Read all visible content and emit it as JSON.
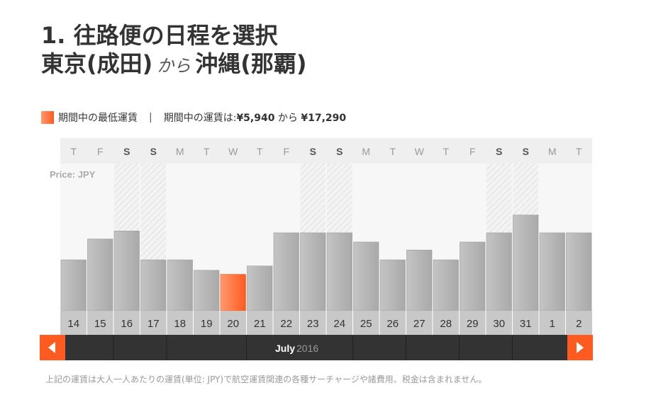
{
  "title": {
    "line1": "1. 往路便の日程を選択",
    "origin": "東京(成田)",
    "connector": "から",
    "destination": "沖縄(那覇)"
  },
  "legend": {
    "lowest_label": "期間中の最低運賃",
    "separator": "|",
    "range_prefix": "期間中の運賃は:",
    "min_price": "¥5,940",
    "range_mid": "から",
    "max_price": "¥17,290"
  },
  "colors": {
    "bar": "#b3b3b3",
    "lowest_bar": "#ff5a1f",
    "nav_bar": "#333333",
    "arrow_button": "#ff5a1f",
    "weekend_hatch": "#e8e8e8"
  },
  "chart_data": {
    "type": "bar",
    "price_label": "Price: JPY",
    "weekdays": [
      "T",
      "F",
      "S",
      "S",
      "M",
      "T",
      "W",
      "T",
      "F",
      "S",
      "S",
      "M",
      "T",
      "W",
      "T",
      "F",
      "S",
      "S",
      "M",
      "T"
    ],
    "categories": [
      "14",
      "15",
      "16",
      "17",
      "18",
      "19",
      "20",
      "21",
      "22",
      "23",
      "24",
      "25",
      "26",
      "27",
      "28",
      "29",
      "30",
      "31",
      "1",
      "2"
    ],
    "weekend_index": [
      2,
      3,
      9,
      10,
      16,
      17
    ],
    "lowest_index": 6,
    "values": [
      8300,
      11700,
      13000,
      8300,
      8300,
      6600,
      5940,
      7300,
      12700,
      12700,
      12700,
      11200,
      8300,
      9900,
      8300,
      11200,
      12700,
      15600,
      12700,
      12700
    ],
    "ylim": [
      0,
      24000
    ],
    "month": "July",
    "year": "2016"
  },
  "footnote": "上記の運賃は大人一人あたりの運賃(単位: JPY)で航空運賃関連の各種サーチャージや諸費用、税金は含まれません。"
}
